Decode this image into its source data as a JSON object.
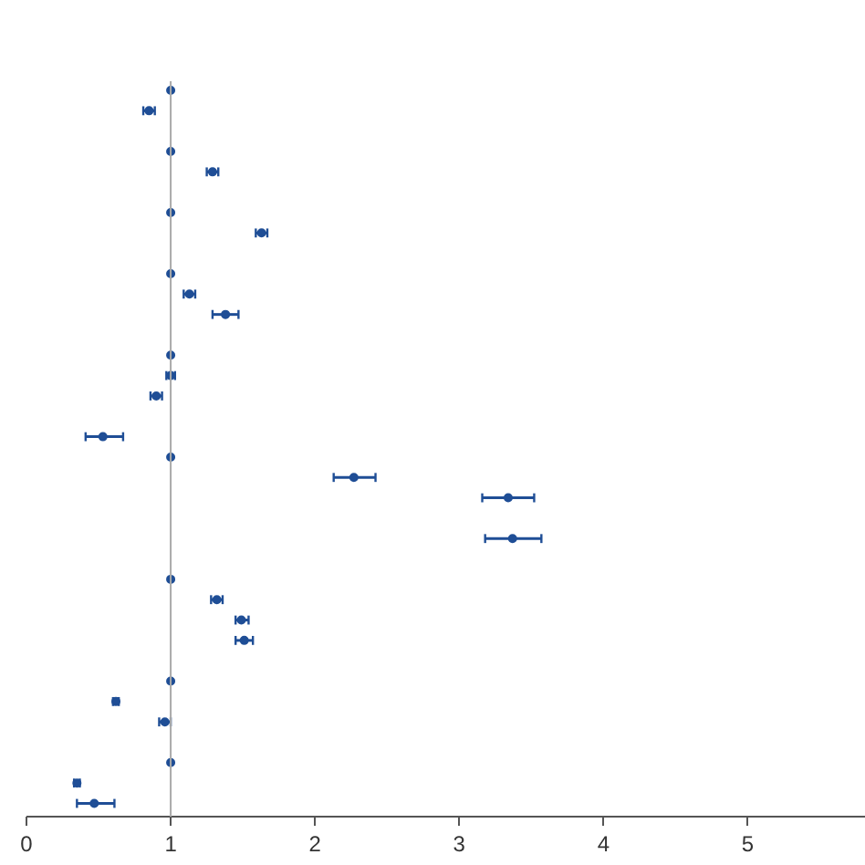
{
  "chart_data": {
    "type": "scatter",
    "orientation": "horizontal",
    "categories": [
      null,
      null,
      null,
      null,
      null,
      null,
      null,
      null,
      null,
      null,
      null,
      null,
      null,
      null,
      null,
      null,
      null,
      null,
      null,
      null,
      null,
      null,
      null,
      null,
      null,
      null,
      null,
      null,
      null,
      null,
      null,
      null,
      null,
      null,
      null,
      null
    ],
    "series": [
      {
        "color": "#1f4e96",
        "values": [
          1.0,
          0.85,
          null,
          1.0,
          1.29,
          null,
          1.0,
          1.63,
          null,
          1.0,
          1.13,
          1.38,
          null,
          1.0,
          1.0,
          0.9,
          null,
          0.53,
          1.0,
          2.27,
          3.34,
          null,
          3.37,
          null,
          1.0,
          1.32,
          1.49,
          1.51,
          null,
          1.0,
          0.62,
          0.96,
          null,
          1.0,
          0.35,
          0.47
        ],
        "errors": [
          null,
          [
            0.81,
            0.89
          ],
          null,
          null,
          [
            1.25,
            1.33
          ],
          null,
          null,
          [
            1.59,
            1.67
          ],
          null,
          null,
          [
            1.09,
            1.17
          ],
          [
            1.29,
            1.47
          ],
          null,
          null,
          [
            0.97,
            1.03
          ],
          [
            0.86,
            0.94
          ],
          null,
          [
            0.41,
            0.67
          ],
          null,
          [
            2.13,
            2.42
          ],
          [
            3.16,
            3.52
          ],
          null,
          [
            3.18,
            3.57
          ],
          null,
          null,
          [
            1.28,
            1.36
          ],
          [
            1.45,
            1.54
          ],
          [
            1.45,
            1.57
          ],
          null,
          null,
          [
            0.6,
            0.64
          ],
          [
            0.92,
            1.0
          ],
          null,
          null,
          [
            0.33,
            0.37
          ],
          [
            0.35,
            0.61
          ]
        ]
      }
    ],
    "xlim": [
      0,
      5.82
    ],
    "xticks": [
      0,
      1,
      2,
      3,
      4,
      5
    ],
    "tick_labels": "x",
    "grid": false,
    "marker": "circle",
    "ref_lines": [
      {
        "axis": "x",
        "value": 1,
        "color": "#aaaaaa"
      }
    ]
  }
}
